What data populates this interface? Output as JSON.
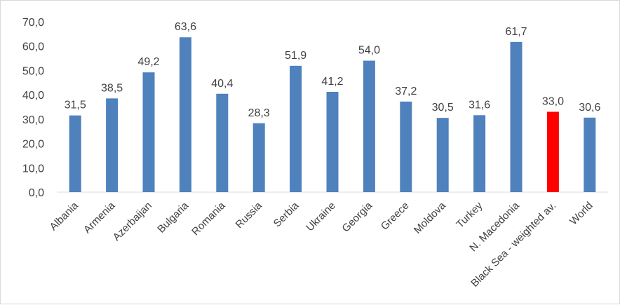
{
  "chart_data": {
    "type": "bar",
    "categories": [
      "Albania",
      "Armenia",
      "Azerbaijan",
      "Bulgaria",
      "Romania",
      "Russia",
      "Serbia",
      "Ukraine",
      "Georgia",
      "Greece",
      "Moldova",
      "Turkey",
      "N. Macedonia",
      "Black Sea - weighted av.",
      "World"
    ],
    "values": [
      31.5,
      38.5,
      49.2,
      63.6,
      40.4,
      28.3,
      51.9,
      41.2,
      54.0,
      37.2,
      30.5,
      31.6,
      61.7,
      33.0,
      30.6
    ],
    "value_labels": [
      "31,5",
      "38,5",
      "49,2",
      "63,6",
      "40,4",
      "28,3",
      "51,9",
      "41,2",
      "54,0",
      "37,2",
      "30,5",
      "31,6",
      "61,7",
      "33,0",
      "30,6"
    ],
    "yticks": [
      "0,0",
      "10,0",
      "20,0",
      "30,0",
      "40,0",
      "50,0",
      "60,0",
      "70,0"
    ],
    "ylim": [
      0,
      70
    ],
    "grid": false,
    "legend": "none",
    "colors": {
      "default_bar": "#4f81bd",
      "highlight_bar": "#ff0000",
      "axis": "#d9d9d9",
      "text": "#404040"
    },
    "highlight_category": "Black Sea - weighted av."
  }
}
